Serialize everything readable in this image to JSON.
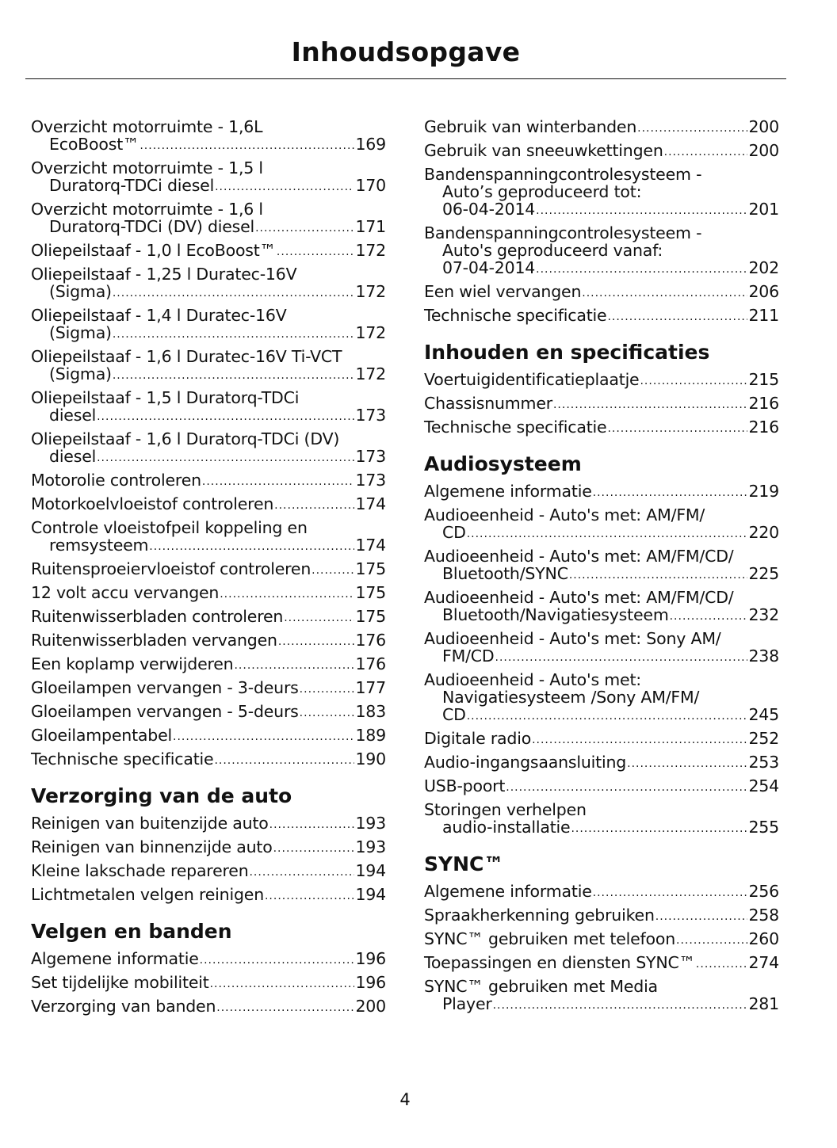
{
  "title": "Inhoudsopgave",
  "page_number": "4",
  "columns": [
    [
      {
        "heading": "",
        "entries": [
          {
            "lines": [
              "Overzicht motorruimte - 1,6L"
            ],
            "last": "EcoBoost™",
            "page": "169"
          },
          {
            "lines": [
              "Overzicht motorruimte - 1,5 l"
            ],
            "last": "Duratorq-TDCi diesel",
            "page": "170"
          },
          {
            "lines": [
              "Overzicht motorruimte - 1,6 l"
            ],
            "last": "Duratorq-TDCi (DV) diesel",
            "page": "171"
          },
          {
            "lines": [],
            "last": "Oliepeilstaaf - 1,0 l EcoBoost™",
            "page": "172"
          },
          {
            "lines": [
              "Oliepeilstaaf - 1,25 l Duratec-16V"
            ],
            "last": "(Sigma)",
            "page": "172"
          },
          {
            "lines": [
              "Oliepeilstaaf - 1,4 l Duratec-16V"
            ],
            "last": "(Sigma)",
            "page": "172"
          },
          {
            "lines": [
              "Oliepeilstaaf - 1,6 l Duratec-16V Ti-VCT"
            ],
            "last": "(Sigma)",
            "page": "172"
          },
          {
            "lines": [
              "Oliepeilstaaf - 1,5 l Duratorq-TDCi"
            ],
            "last": "diesel",
            "page": "173"
          },
          {
            "lines": [
              "Oliepeilstaaf - 1,6 l Duratorq-TDCi (DV)"
            ],
            "last": "diesel",
            "page": "173"
          },
          {
            "lines": [],
            "last": "Motorolie controleren",
            "page": "173"
          },
          {
            "lines": [],
            "last": "Motorkoelvloeistof controleren",
            "page": "174"
          },
          {
            "lines": [
              "Controle vloeistofpeil koppeling en"
            ],
            "last": "remsysteem",
            "page": "174"
          },
          {
            "lines": [],
            "last": "Ruitensproeiervloeistof controleren",
            "page": "175"
          },
          {
            "lines": [],
            "last": "12 volt accu vervangen",
            "page": "175"
          },
          {
            "lines": [],
            "last": "Ruitenwisserbladen controleren",
            "page": "175"
          },
          {
            "lines": [],
            "last": "Ruitenwisserbladen vervangen",
            "page": "176"
          },
          {
            "lines": [],
            "last": "Een koplamp verwijderen",
            "page": "176"
          },
          {
            "lines": [],
            "last": "Gloeilampen vervangen - 3-deurs",
            "page": "177"
          },
          {
            "lines": [],
            "last": "Gloeilampen vervangen - 5-deurs",
            "page": "183"
          },
          {
            "lines": [],
            "last": "Gloeilampentabel",
            "page": "189"
          },
          {
            "lines": [],
            "last": "Technische specificatie",
            "page": "190"
          }
        ]
      },
      {
        "heading": "Verzorging van de auto",
        "entries": [
          {
            "lines": [],
            "last": "Reinigen van buitenzijde auto",
            "page": "193"
          },
          {
            "lines": [],
            "last": "Reinigen van binnenzijde auto",
            "page": "193"
          },
          {
            "lines": [],
            "last": "Kleine lakschade repareren",
            "page": "194"
          },
          {
            "lines": [],
            "last": "Lichtmetalen velgen reinigen",
            "page": "194"
          }
        ]
      },
      {
        "heading": "Velgen en banden",
        "entries": [
          {
            "lines": [],
            "last": "Algemene informatie",
            "page": "196"
          },
          {
            "lines": [],
            "last": "Set tijdelijke mobiliteit",
            "page": "196"
          },
          {
            "lines": [],
            "last": "Verzorging van banden",
            "page": "200"
          }
        ]
      }
    ],
    [
      {
        "heading": "",
        "entries": [
          {
            "lines": [],
            "last": "Gebruik van winterbanden",
            "page": "200"
          },
          {
            "lines": [],
            "last": "Gebruik van sneeuwkettingen",
            "page": "200"
          },
          {
            "lines": [
              "Bandenspanningcontrolesysteem -",
              "Auto’s geproduceerd tot:"
            ],
            "last": "06-04-2014",
            "page": "201"
          },
          {
            "lines": [
              "Bandenspanningcontrolesysteem -",
              "Auto's geproduceerd vanaf:"
            ],
            "last": "07-04-2014",
            "page": "202"
          },
          {
            "lines": [],
            "last": "Een wiel vervangen",
            "page": "206"
          },
          {
            "lines": [],
            "last": "Technische specificatie",
            "page": "211"
          }
        ]
      },
      {
        "heading": "Inhouden en specificaties",
        "entries": [
          {
            "lines": [],
            "last": "Voertuigidentificatieplaatje",
            "page": "215"
          },
          {
            "lines": [],
            "last": "Chassisnummer",
            "page": "216"
          },
          {
            "lines": [],
            "last": "Technische specificatie",
            "page": "216"
          }
        ]
      },
      {
        "heading": "Audiosysteem",
        "entries": [
          {
            "lines": [],
            "last": "Algemene informatie",
            "page": "219"
          },
          {
            "lines": [
              "Audioeenheid - Auto's met: AM/FM/"
            ],
            "last": "CD",
            "page": "220"
          },
          {
            "lines": [
              "Audioeenheid - Auto's met: AM/FM/CD/"
            ],
            "last": "Bluetooth/SYNC",
            "page": "225"
          },
          {
            "lines": [
              "Audioeenheid - Auto's met: AM/FM/CD/"
            ],
            "last": "Bluetooth/Navigatiesysteem ",
            "page": "232"
          },
          {
            "lines": [
              "Audioeenheid - Auto's met: Sony AM/"
            ],
            "last": "FM/CD",
            "page": "238"
          },
          {
            "lines": [
              "Audioeenheid - Auto's met:",
              "Navigatiesysteem /Sony AM/FM/"
            ],
            "last": "CD",
            "page": "245"
          },
          {
            "lines": [],
            "last": "Digitale radio",
            "page": "252"
          },
          {
            "lines": [],
            "last": "Audio-ingangsaansluiting",
            "page": "253"
          },
          {
            "lines": [],
            "last": "USB-poort",
            "page": "254"
          },
          {
            "lines": [
              "Storingen verhelpen"
            ],
            "last": "audio-installatie",
            "page": "255"
          }
        ]
      },
      {
        "heading": "SYNC™",
        "entries": [
          {
            "lines": [],
            "last": "Algemene informatie",
            "page": "256"
          },
          {
            "lines": [],
            "last": "Spraakherkenning gebruiken",
            "page": "258"
          },
          {
            "lines": [],
            "last": "SYNC™ gebruiken met telefoon",
            "page": "260"
          },
          {
            "lines": [],
            "last": "Toepassingen en diensten SYNC™",
            "page": "274"
          },
          {
            "lines": [
              "SYNC™ gebruiken met Media"
            ],
            "last": "Player",
            "page": "281"
          }
        ]
      }
    ]
  ]
}
